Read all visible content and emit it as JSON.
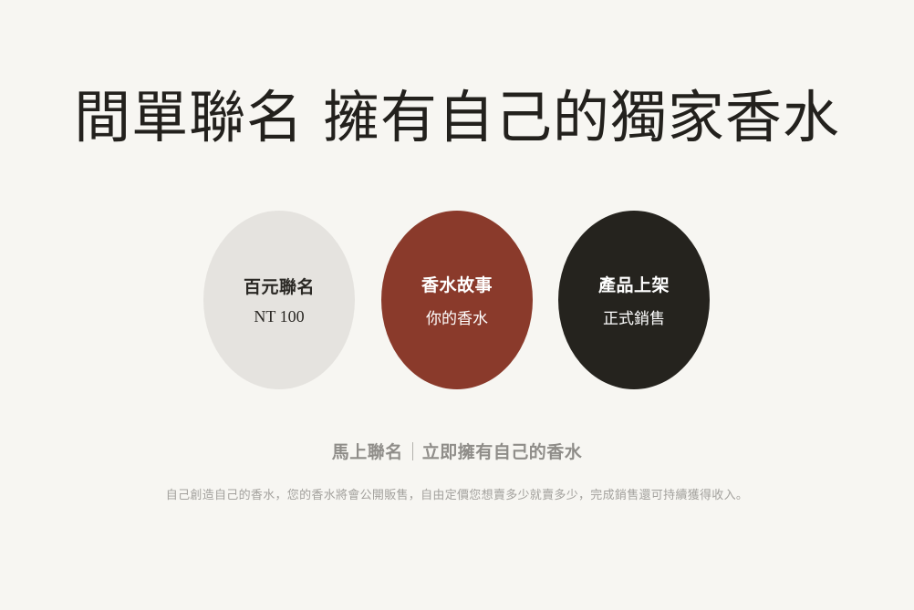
{
  "headline": "間單聯名  擁有自己的獨家香水",
  "circles": [
    {
      "title": "百元聯名",
      "subtitle": "NT 100",
      "bg": "#e5e3df",
      "fg": "#2a2824"
    },
    {
      "title": "香水故事",
      "subtitle": "你的香水",
      "bg": "#8a3a2b",
      "fg": "#ffffff"
    },
    {
      "title": "產品上架",
      "subtitle": "正式銷售",
      "bg": "#25231e",
      "fg": "#ffffff"
    }
  ],
  "tagline": {
    "left": "馬上聯名",
    "right": "立即擁有自己的香水"
  },
  "description": "自己創造自己的香水，您的香水將會公開販售，自由定價您想賣多少就賣多少，完成銷售還可持續獲得收入。"
}
